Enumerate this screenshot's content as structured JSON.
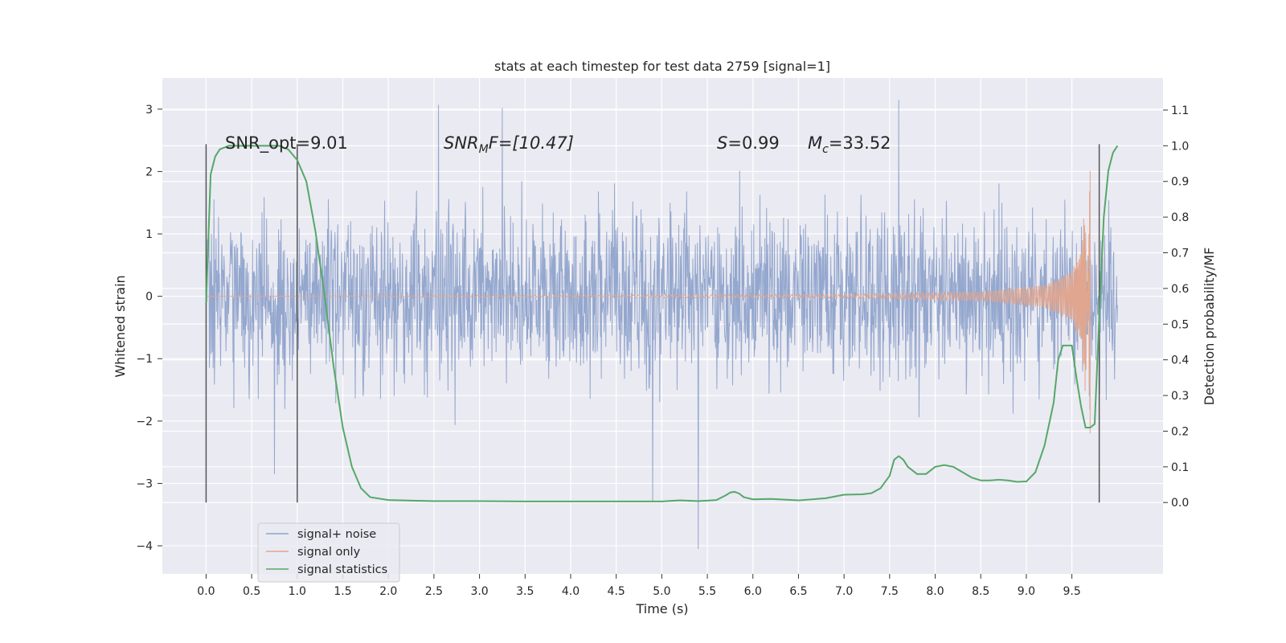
{
  "chart_data": {
    "type": "line",
    "title": "stats at each timestep for test data 2759 [signal=1]",
    "xlabel": "Time (s)",
    "ylabel_left": "Whitened strain",
    "ylabel_right": "Detection probability/MF",
    "xlim": [
      -0.48,
      10.5
    ],
    "ylim_left": [
      -4.45,
      3.5
    ],
    "ylim_right": [
      -0.2,
      1.19
    ],
    "x_ticks": [
      "0.0",
      "0.5",
      "1.0",
      "1.5",
      "2.0",
      "2.5",
      "3.0",
      "3.5",
      "4.0",
      "4.5",
      "5.0",
      "5.5",
      "6.0",
      "6.5",
      "7.0",
      "7.5",
      "8.0",
      "8.5",
      "9.0",
      "9.5"
    ],
    "y_ticks_left": [
      "3",
      "2",
      "1",
      "0",
      "−1",
      "−2",
      "−3",
      "−4"
    ],
    "y_ticks_right": [
      "1.1",
      "1.0",
      "0.9",
      "0.8",
      "0.7",
      "0.6",
      "0.5",
      "0.4",
      "0.3",
      "0.2",
      "0.1",
      "0.0"
    ],
    "grid": true,
    "legend_position": "lower-left",
    "series": [
      {
        "name": "signal+ noise",
        "color": "#8fa3cb",
        "axis": "left",
        "x_range": [
          0.0,
          10.0
        ],
        "approx_envelope": [
          -1.6,
          1.6
        ],
        "notable_peaks": [
          [
            2.55,
            3.07
          ],
          [
            3.25,
            3.02
          ],
          [
            7.6,
            3.15
          ],
          [
            5.4,
            -4.05
          ],
          [
            4.9,
            -3.3
          ],
          [
            0.75,
            -2.85
          ]
        ]
      },
      {
        "name": "signal only",
        "color": "#e1a68f",
        "axis": "left",
        "x_range": [
          0.0,
          9.7
        ],
        "description_points": [
          [
            0.0,
            0.0
          ],
          [
            7.0,
            0.03
          ],
          [
            8.5,
            0.07
          ],
          [
            9.2,
            0.18
          ],
          [
            9.5,
            0.4
          ],
          [
            9.6,
            0.8
          ],
          [
            9.65,
            1.6
          ],
          [
            9.7,
            -2.2
          ]
        ]
      },
      {
        "name": "signal statistics",
        "color": "#55a868",
        "axis": "right",
        "x": [
          0.0,
          0.05,
          0.1,
          0.15,
          0.25,
          0.4,
          0.6,
          0.8,
          0.9,
          1.0,
          1.1,
          1.2,
          1.3,
          1.4,
          1.5,
          1.6,
          1.7,
          1.8,
          2.0,
          2.5,
          3.0,
          3.5,
          4.0,
          4.5,
          5.0,
          5.2,
          5.4,
          5.6,
          5.7,
          5.75,
          5.8,
          5.85,
          5.9,
          6.0,
          6.2,
          6.5,
          6.8,
          7.0,
          7.2,
          7.3,
          7.4,
          7.5,
          7.55,
          7.6,
          7.65,
          7.7,
          7.8,
          7.9,
          8.0,
          8.1,
          8.2,
          8.3,
          8.4,
          8.5,
          8.6,
          8.7,
          8.8,
          8.9,
          9.0,
          9.1,
          9.2,
          9.3,
          9.35,
          9.4,
          9.5,
          9.55,
          9.6,
          9.65,
          9.7,
          9.75,
          9.8,
          9.85,
          9.9,
          9.95,
          10.0
        ],
        "y": [
          0.56,
          0.92,
          0.97,
          0.99,
          1.0,
          1.0,
          1.0,
          1.0,
          0.99,
          0.96,
          0.9,
          0.76,
          0.58,
          0.38,
          0.21,
          0.1,
          0.04,
          0.015,
          0.007,
          0.004,
          0.004,
          0.003,
          0.003,
          0.003,
          0.003,
          0.006,
          0.004,
          0.007,
          0.02,
          0.028,
          0.03,
          0.025,
          0.015,
          0.009,
          0.01,
          0.006,
          0.012,
          0.022,
          0.023,
          0.026,
          0.04,
          0.075,
          0.12,
          0.13,
          0.12,
          0.1,
          0.08,
          0.08,
          0.1,
          0.105,
          0.1,
          0.085,
          0.07,
          0.062,
          0.062,
          0.064,
          0.062,
          0.058,
          0.059,
          0.085,
          0.16,
          0.28,
          0.4,
          0.44,
          0.44,
          0.35,
          0.27,
          0.21,
          0.21,
          0.22,
          0.52,
          0.8,
          0.93,
          0.98,
          1.0
        ]
      }
    ],
    "vertical_lines": [
      0.0,
      1.0,
      9.8
    ],
    "vertical_line_color": "#555555",
    "annotations": {
      "snr_opt": "SNR_opt=9.01",
      "snr_mf_main": "SNR",
      "snr_mf_sub": "M",
      "snr_mf_rest": "F=[10.47]",
      "s_var": "S",
      "s_rest": "=0.99",
      "mc_var": "M",
      "mc_sub": "c",
      "mc_rest": "=33.52"
    }
  }
}
